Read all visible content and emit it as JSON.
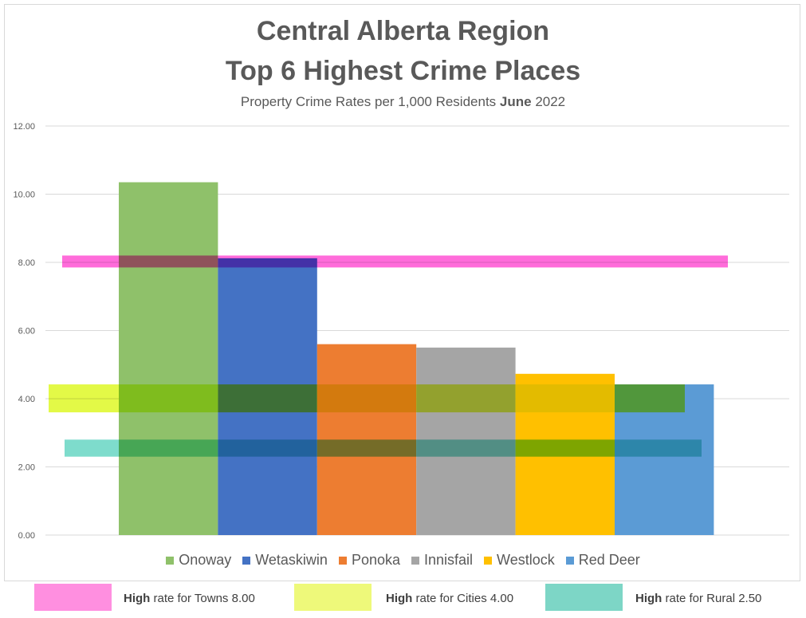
{
  "chart_data": {
    "type": "bar",
    "title": [
      "Central Alberta Region",
      "Top 6 Highest Crime Places"
    ],
    "subtitle": {
      "pre": "Property Crime Rates per 1,000 Residents ",
      "bold": "June",
      "post": " 2022"
    },
    "categories": [
      "Onoway",
      "Wetaskiwin",
      "Ponoka",
      "Innisfail",
      "Westlock",
      "Red Deer"
    ],
    "values": [
      10.35,
      8.12,
      5.6,
      5.5,
      4.73,
      4.42
    ],
    "colors": [
      "#8fc16a",
      "#4472c4",
      "#ed7d31",
      "#a5a5a5",
      "#ffc000",
      "#5b9bd5"
    ],
    "ylim": [
      0,
      12
    ],
    "yticks": [
      "0.00",
      "2.00",
      "4.00",
      "6.00",
      "8.00",
      "10.00",
      "12.00"
    ],
    "grid": true,
    "legend": "bottom",
    "reference_bands": [
      {
        "bold": "High",
        "label": " rate for Towns 8.00",
        "value": 8.0,
        "color": "#ff33cc",
        "legend_color": "#ff8fe0"
      },
      {
        "bold": "High",
        "label": " rate for Cities 4.00",
        "value": 4.0,
        "color": "#d9f700",
        "legend_color": "#eef97a"
      },
      {
        "bold": "High",
        "label": " rate for Rural 2.50",
        "value": 2.5,
        "color": "#4ccfb8",
        "legend_color": "#7dd6c6"
      }
    ]
  }
}
